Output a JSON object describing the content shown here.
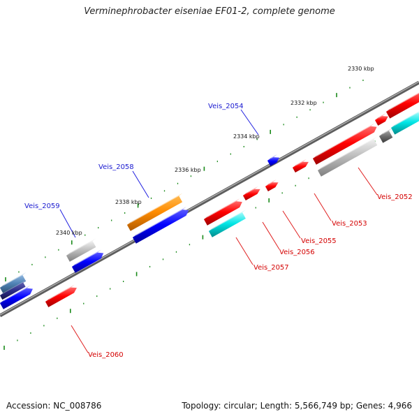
{
  "title": "Verminephrobacter eiseniae EF01-2, complete genome",
  "footer": {
    "accession": "Accession: NC_008786",
    "summary": "Topology: circular; Length: 5,566,749 bp; Genes: 4,966"
  },
  "colors": {
    "red": "#ff0000",
    "blue": "#0000ff",
    "orange": "#ff8c00",
    "cyan": "#00e5e5",
    "gray": "#bdbdbd",
    "steel": "#4f82b4",
    "navy": "#2e2e8a",
    "darkgray": "#6e6e6e",
    "tick": "#1a8a1a",
    "backbone": "#6a6a6a",
    "label_red": "#d40000",
    "label_blue": "#1a1ad0"
  },
  "kbp_labels": [
    "2330 kbp",
    "2332 kbp",
    "2334 kbp",
    "2336 kbp",
    "2338 kbp",
    "2340 kbp"
  ],
  "gene_labels": {
    "top": [
      "Veis_2054",
      "Veis_2058",
      "Veis_2059"
    ],
    "bottom": [
      "Veis_2052",
      "Veis_2053",
      "Veis_2055",
      "Veis_2056",
      "Veis_2057",
      "Veis_2060"
    ]
  }
}
